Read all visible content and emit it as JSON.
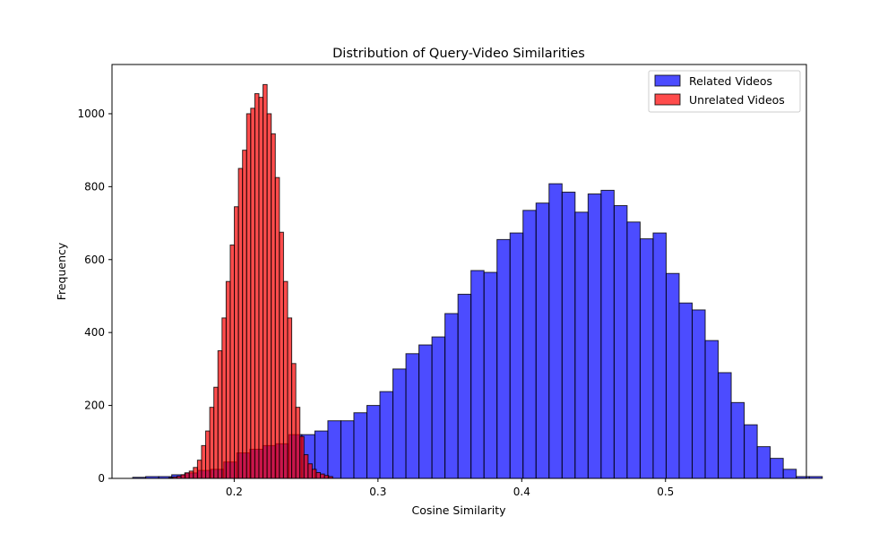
{
  "chart_data": {
    "type": "bar",
    "title": "Distribution of Query-Video Similarities",
    "xlabel": "Cosine Similarity",
    "ylabel": "Frequency",
    "xlim": [
      0.115,
      0.598
    ],
    "ylim": [
      0,
      1135
    ],
    "xticks": [
      0.2,
      0.3,
      0.4,
      0.5
    ],
    "xtick_labels": [
      "0.2",
      "0.3",
      "0.4",
      "0.5"
    ],
    "yticks": [
      0,
      200,
      400,
      600,
      800,
      1000
    ],
    "ytick_labels": [
      "0",
      "200",
      "400",
      "600",
      "800",
      "1000"
    ],
    "grid": false,
    "legend_position": "top-right",
    "series": [
      {
        "name": "Related Videos",
        "color": "#0000ff",
        "edge_color": "#000000",
        "alpha": 0.7,
        "bin_start": 0.1294,
        "bin_width": 0.00905,
        "counts": [
          3,
          5,
          5,
          10,
          15,
          22,
          25,
          45,
          70,
          80,
          90,
          95,
          120,
          120,
          130,
          158,
          158,
          180,
          200,
          238,
          300,
          342,
          366,
          388,
          452,
          505,
          570,
          565,
          655,
          673,
          735,
          755,
          808,
          785,
          730,
          780,
          790,
          748,
          703,
          657,
          673,
          562,
          481,
          462,
          378,
          290,
          208,
          147,
          87,
          55,
          25,
          5,
          5
        ]
      },
      {
        "name": "Unrelated Videos",
        "color": "#ff0000",
        "edge_color": "#000000",
        "alpha": 0.7,
        "bin_start": 0.1545,
        "bin_width": 0.00285,
        "counts": [
          2,
          4,
          6,
          10,
          15,
          20,
          30,
          50,
          90,
          130,
          195,
          250,
          350,
          440,
          540,
          640,
          745,
          850,
          900,
          1000,
          1015,
          1055,
          1045,
          1080,
          1000,
          945,
          825,
          675,
          540,
          440,
          315,
          195,
          115,
          65,
          40,
          25,
          16,
          12,
          8,
          5
        ]
      }
    ]
  }
}
